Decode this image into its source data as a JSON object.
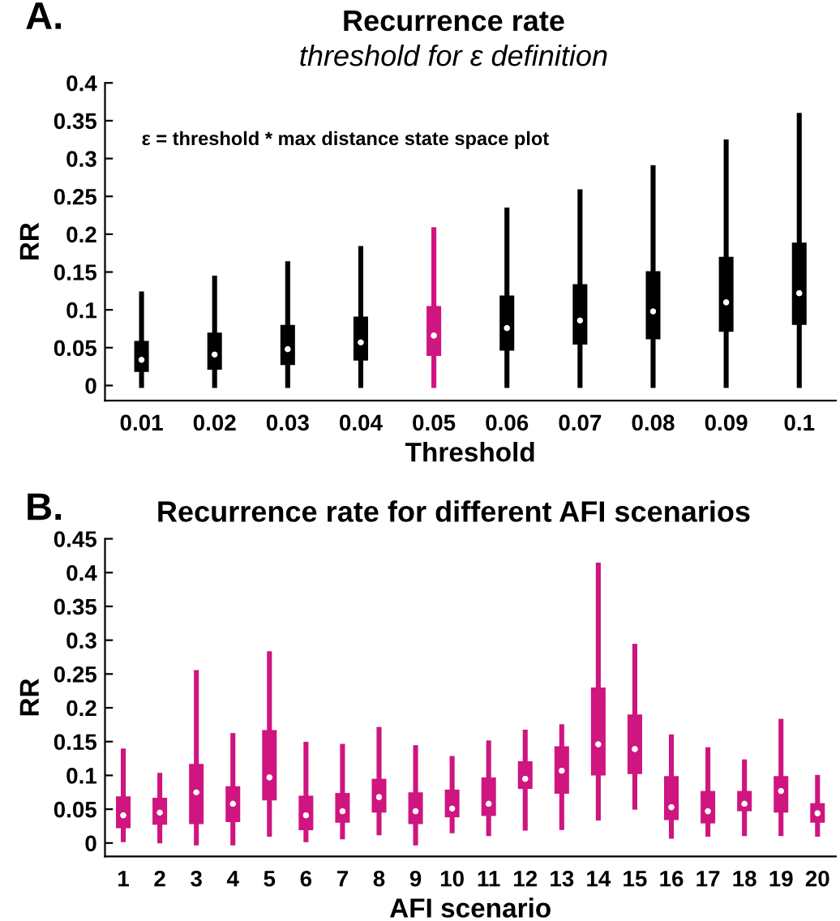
{
  "chart_data": [
    {
      "type": "box",
      "title": "Recurrence rate",
      "subtitle": "threshold for ε definition",
      "xlabel": "Threshold",
      "ylabel": "RR",
      "annotations": [
        "A.",
        "ε = threshold * max distance state space plot"
      ],
      "categories": [
        "0.01",
        "0.02",
        "0.03",
        "0.04",
        "0.05",
        "0.06",
        "0.07",
        "0.08",
        "0.09",
        "0.1"
      ],
      "colors": [
        "#000000",
        "#000000",
        "#000000",
        "#000000",
        "#cf157f",
        "#000000",
        "#000000",
        "#000000",
        "#000000",
        "#000000"
      ],
      "ylim": [
        -0.02,
        0.4
      ],
      "yticks": [
        0,
        0.05,
        0.1,
        0.15,
        0.2,
        0.25,
        0.3,
        0.35,
        0.4
      ],
      "grid": false,
      "boxes": [
        {
          "low": 0,
          "q1": 0.018,
          "median": 0.034,
          "q3": 0.059,
          "high": 0.121
        },
        {
          "low": 0,
          "q1": 0.021,
          "median": 0.041,
          "q3": 0.07,
          "high": 0.142
        },
        {
          "low": 0,
          "q1": 0.027,
          "median": 0.048,
          "q3": 0.08,
          "high": 0.161
        },
        {
          "low": 0,
          "q1": 0.033,
          "median": 0.057,
          "q3": 0.091,
          "high": 0.181
        },
        {
          "low": 0,
          "q1": 0.039,
          "median": 0.066,
          "q3": 0.105,
          "high": 0.206
        },
        {
          "low": 0,
          "q1": 0.046,
          "median": 0.076,
          "q3": 0.119,
          "high": 0.232
        },
        {
          "low": 0,
          "q1": 0.054,
          "median": 0.086,
          "q3": 0.134,
          "high": 0.256
        },
        {
          "low": 0,
          "q1": 0.061,
          "median": 0.098,
          "q3": 0.151,
          "high": 0.288
        },
        {
          "low": 0,
          "q1": 0.071,
          "median": 0.11,
          "q3": 0.17,
          "high": 0.322
        },
        {
          "low": 0,
          "q1": 0.08,
          "median": 0.122,
          "q3": 0.189,
          "high": 0.357
        }
      ]
    },
    {
      "type": "box",
      "title": "Recurrence rate for different AFI scenarios",
      "xlabel": "AFI scenario",
      "ylabel": "RR",
      "annotations": [
        "B."
      ],
      "categories": [
        "1",
        "2",
        "3",
        "4",
        "5",
        "6",
        "7",
        "8",
        "9",
        "10",
        "11",
        "12",
        "13",
        "14",
        "15",
        "16",
        "17",
        "18",
        "19",
        "20"
      ],
      "colors": [
        "#cf157f",
        "#cf157f",
        "#cf157f",
        "#cf157f",
        "#cf157f",
        "#cf157f",
        "#cf157f",
        "#cf157f",
        "#cf157f",
        "#cf157f",
        "#cf157f",
        "#cf157f",
        "#cf157f",
        "#cf157f",
        "#cf157f",
        "#cf157f",
        "#cf157f",
        "#cf157f",
        "#cf157f",
        "#cf157f"
      ],
      "ylim": [
        -0.02,
        0.45
      ],
      "yticks": [
        0,
        0.05,
        0.1,
        0.15,
        0.2,
        0.25,
        0.3,
        0.35,
        0.4,
        0.45
      ],
      "grid": false,
      "boxes": [
        {
          "low": 0.005,
          "q1": 0.022,
          "median": 0.041,
          "q3": 0.069,
          "high": 0.136
        },
        {
          "low": 0.003,
          "q1": 0.027,
          "median": 0.045,
          "q3": 0.067,
          "high": 0.1
        },
        {
          "low": 0,
          "q1": 0.028,
          "median": 0.075,
          "q3": 0.117,
          "high": 0.252
        },
        {
          "low": 0,
          "q1": 0.031,
          "median": 0.058,
          "q3": 0.084,
          "high": 0.159
        },
        {
          "low": 0.013,
          "q1": 0.063,
          "median": 0.097,
          "q3": 0.167,
          "high": 0.28
        },
        {
          "low": 0.005,
          "q1": 0.019,
          "median": 0.041,
          "q3": 0.07,
          "high": 0.146
        },
        {
          "low": 0.009,
          "q1": 0.03,
          "median": 0.047,
          "q3": 0.074,
          "high": 0.143
        },
        {
          "low": 0.015,
          "q1": 0.045,
          "median": 0.068,
          "q3": 0.095,
          "high": 0.168
        },
        {
          "low": 0,
          "q1": 0.028,
          "median": 0.047,
          "q3": 0.075,
          "high": 0.141
        },
        {
          "low": 0.018,
          "q1": 0.038,
          "median": 0.051,
          "q3": 0.079,
          "high": 0.125
        },
        {
          "low": 0.014,
          "q1": 0.04,
          "median": 0.058,
          "q3": 0.097,
          "high": 0.148
        },
        {
          "low": 0.022,
          "q1": 0.08,
          "median": 0.095,
          "q3": 0.121,
          "high": 0.164
        },
        {
          "low": 0.023,
          "q1": 0.073,
          "median": 0.107,
          "q3": 0.143,
          "high": 0.172
        },
        {
          "low": 0.037,
          "q1": 0.1,
          "median": 0.146,
          "q3": 0.23,
          "high": 0.411
        },
        {
          "low": 0.053,
          "q1": 0.102,
          "median": 0.139,
          "q3": 0.19,
          "high": 0.291
        },
        {
          "low": 0.01,
          "q1": 0.034,
          "median": 0.053,
          "q3": 0.099,
          "high": 0.157
        },
        {
          "low": 0.013,
          "q1": 0.029,
          "median": 0.047,
          "q3": 0.077,
          "high": 0.138
        },
        {
          "low": 0.014,
          "q1": 0.047,
          "median": 0.058,
          "q3": 0.077,
          "high": 0.12
        },
        {
          "low": 0.014,
          "q1": 0.045,
          "median": 0.077,
          "q3": 0.099,
          "high": 0.18
        },
        {
          "low": 0.013,
          "q1": 0.03,
          "median": 0.044,
          "q3": 0.059,
          "high": 0.097
        }
      ]
    }
  ]
}
